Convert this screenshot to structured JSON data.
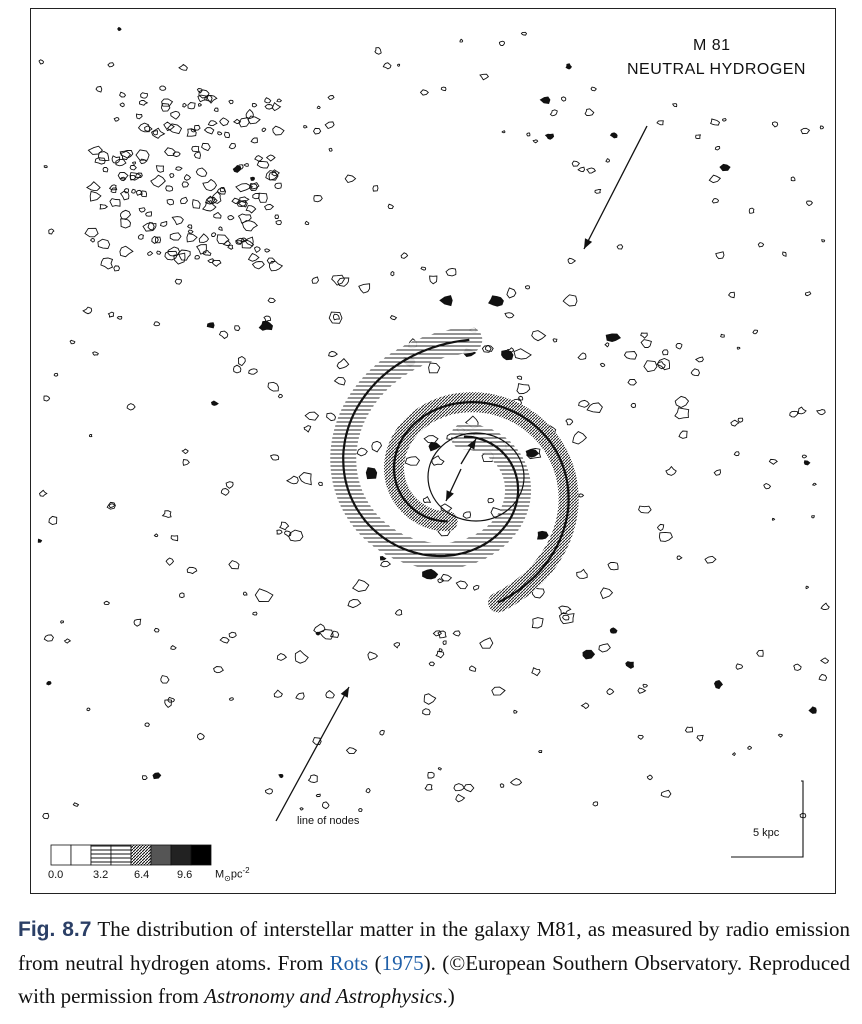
{
  "figure": {
    "title_line1": "M 81",
    "title_line2": "NEUTRAL HYDROGEN",
    "annotation_line_of_nodes": "line of nodes",
    "scale_bar_label": "5 kpc",
    "legend": {
      "ticks": [
        "0.0",
        "3.2",
        "6.4",
        "9.6"
      ],
      "unit": "M",
      "unit_sub": "⊙",
      "unit_tail": "pc",
      "unit_sup": "-2"
    }
  },
  "caption": {
    "fig_number": "Fig. 8.7",
    "text_1": " The distribution of interstellar matter in the galaxy M81, as measured by radio emission from neutral hydrogen atoms. From ",
    "cite_author": "Rots",
    "cite_open": " (",
    "cite_year": "1975",
    "text_2": "). (©European Southern Observatory. Reproduced with permission from ",
    "journal": "Astronomy and Astrophysics",
    "text_3": ".)"
  },
  "colors": {
    "ink": "#111111",
    "fig_number": "#2b3f66",
    "citation_link": "#1f5fa8"
  }
}
